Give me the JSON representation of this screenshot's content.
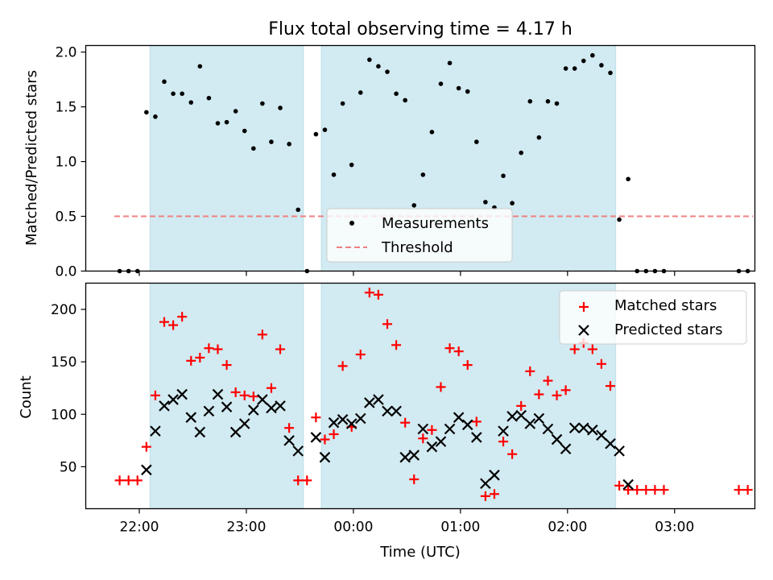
{
  "chart_data": [
    {
      "type": "scatter",
      "title": "Flux total observing time = 4.17 h",
      "xlabel": "",
      "ylabel": "Matched/Predicted stars",
      "ylim": [
        0,
        2.06
      ],
      "yticks": [
        "0.0",
        "0.5",
        "1.0",
        "1.5",
        "2.0"
      ],
      "grid": false,
      "legend_placement": "bottom-center",
      "shaded_x_ranges": [
        [
          "22:06",
          "23:32"
        ],
        [
          "23:42",
          "02:27"
        ]
      ],
      "series": [
        {
          "name": "Measurements",
          "kind": "points",
          "color": "#000000",
          "points": [
            [
              "21:49",
              0.0
            ],
            [
              "21:54",
              0.0
            ],
            [
              "21:59",
              0.0
            ],
            [
              "22:04",
              1.45
            ],
            [
              "22:09",
              1.41
            ],
            [
              "22:14",
              1.73
            ],
            [
              "22:19",
              1.62
            ],
            [
              "22:24",
              1.62
            ],
            [
              "22:29",
              1.54
            ],
            [
              "22:34",
              1.87
            ],
            [
              "22:39",
              1.58
            ],
            [
              "22:44",
              1.35
            ],
            [
              "22:49",
              1.36
            ],
            [
              "22:54",
              1.46
            ],
            [
              "22:59",
              1.28
            ],
            [
              "23:04",
              1.12
            ],
            [
              "23:09",
              1.53
            ],
            [
              "23:14",
              1.18
            ],
            [
              "23:19",
              1.49
            ],
            [
              "23:24",
              1.16
            ],
            [
              "23:29",
              0.56
            ],
            [
              "23:34",
              0.0
            ],
            [
              "23:39",
              1.25
            ],
            [
              "23:44",
              1.29
            ],
            [
              "23:49",
              0.88
            ],
            [
              "23:54",
              1.53
            ],
            [
              "23:59",
              0.97
            ],
            [
              "00:04",
              1.63
            ],
            [
              "00:09",
              1.93
            ],
            [
              "00:14",
              1.87
            ],
            [
              "00:19",
              1.82
            ],
            [
              "00:24",
              1.62
            ],
            [
              "00:29",
              1.56
            ],
            [
              "00:34",
              0.6
            ],
            [
              "00:39",
              0.88
            ],
            [
              "00:44",
              1.27
            ],
            [
              "00:49",
              1.71
            ],
            [
              "00:54",
              1.9
            ],
            [
              "00:59",
              1.67
            ],
            [
              "01:04",
              1.64
            ],
            [
              "01:09",
              1.18
            ],
            [
              "01:14",
              0.63
            ],
            [
              "01:19",
              0.58
            ],
            [
              "01:24",
              0.87
            ],
            [
              "01:29",
              0.62
            ],
            [
              "01:34",
              1.08
            ],
            [
              "01:39",
              1.55
            ],
            [
              "01:44",
              1.22
            ],
            [
              "01:49",
              1.55
            ],
            [
              "01:54",
              1.53
            ],
            [
              "01:59",
              1.85
            ],
            [
              "02:04",
              1.85
            ],
            [
              "02:09",
              1.92
            ],
            [
              "02:14",
              1.97
            ],
            [
              "02:19",
              1.88
            ],
            [
              "02:24",
              1.81
            ],
            [
              "02:29",
              0.47
            ],
            [
              "02:34",
              0.84
            ],
            [
              "02:39",
              0.0
            ],
            [
              "02:44",
              0.0
            ],
            [
              "02:49",
              0.0
            ],
            [
              "02:54",
              0.0
            ],
            [
              "03:36",
              0.0
            ],
            [
              "03:41",
              0.0
            ]
          ]
        },
        {
          "name": "Threshold",
          "kind": "dashed-line",
          "color": "#f08080",
          "points": [
            [
              "21:46",
              0.5
            ],
            [
              "03:44",
              0.5
            ]
          ]
        }
      ]
    },
    {
      "type": "scatter",
      "title": "",
      "xlabel": "Time (UTC)",
      "ylabel": "Count",
      "ylim": [
        10,
        225
      ],
      "yticks": [
        "50",
        "100",
        "150",
        "200"
      ],
      "xticks": [
        "22:00",
        "23:00",
        "00:00",
        "01:00",
        "02:00",
        "03:00"
      ],
      "grid": false,
      "legend_placement": "top-right",
      "shaded_x_ranges": [
        [
          "22:06",
          "23:32"
        ],
        [
          "23:42",
          "02:27"
        ]
      ],
      "series": [
        {
          "name": "Matched stars",
          "kind": "plus",
          "color": "#ff0000",
          "points": [
            [
              "21:49",
              37
            ],
            [
              "21:54",
              37
            ],
            [
              "21:59",
              37
            ],
            [
              "22:04",
              69
            ],
            [
              "22:09",
              118
            ],
            [
              "22:14",
              188
            ],
            [
              "22:19",
              185
            ],
            [
              "22:24",
              193
            ],
            [
              "22:29",
              151
            ],
            [
              "22:34",
              154
            ],
            [
              "22:39",
              163
            ],
            [
              "22:44",
              162
            ],
            [
              "22:49",
              147
            ],
            [
              "22:54",
              121
            ],
            [
              "22:59",
              118
            ],
            [
              "23:04",
              117
            ],
            [
              "23:09",
              176
            ],
            [
              "23:14",
              125
            ],
            [
              "23:19",
              162
            ],
            [
              "23:24",
              87
            ],
            [
              "23:29",
              37
            ],
            [
              "23:34",
              37
            ],
            [
              "23:39",
              97
            ],
            [
              "23:44",
              76
            ],
            [
              "23:49",
              81
            ],
            [
              "23:54",
              146
            ],
            [
              "23:59",
              88
            ],
            [
              "00:04",
              157
            ],
            [
              "00:09",
              216
            ],
            [
              "00:14",
              214
            ],
            [
              "00:19",
              186
            ],
            [
              "00:24",
              166
            ],
            [
              "00:29",
              92
            ],
            [
              "00:34",
              38
            ],
            [
              "00:39",
              77
            ],
            [
              "00:44",
              85
            ],
            [
              "00:49",
              126
            ],
            [
              "00:54",
              163
            ],
            [
              "00:59",
              160
            ],
            [
              "01:04",
              147
            ],
            [
              "01:09",
              93
            ],
            [
              "01:14",
              22
            ],
            [
              "01:19",
              24
            ],
            [
              "01:24",
              74
            ],
            [
              "01:29",
              62
            ],
            [
              "01:34",
              108
            ],
            [
              "01:39",
              141
            ],
            [
              "01:44",
              119
            ],
            [
              "01:49",
              132
            ],
            [
              "01:54",
              118
            ],
            [
              "01:59",
              123
            ],
            [
              "02:04",
              162
            ],
            [
              "02:09",
              168
            ],
            [
              "02:14",
              162
            ],
            [
              "02:19",
              148
            ],
            [
              "02:24",
              127
            ],
            [
              "02:29",
              32
            ],
            [
              "02:34",
              28
            ],
            [
              "02:39",
              28
            ],
            [
              "02:44",
              28
            ],
            [
              "02:49",
              28
            ],
            [
              "02:54",
              28
            ],
            [
              "03:36",
              28
            ],
            [
              "03:41",
              28
            ]
          ]
        },
        {
          "name": "Predicted stars",
          "kind": "cross",
          "color": "#000000",
          "points": [
            [
              "22:04",
              47
            ],
            [
              "22:09",
              84
            ],
            [
              "22:14",
              108
            ],
            [
              "22:19",
              114
            ],
            [
              "22:24",
              119
            ],
            [
              "22:29",
              97
            ],
            [
              "22:34",
              83
            ],
            [
              "22:39",
              103
            ],
            [
              "22:44",
              119
            ],
            [
              "22:49",
              107
            ],
            [
              "22:54",
              83
            ],
            [
              "22:59",
              91
            ],
            [
              "23:04",
              104
            ],
            [
              "23:09",
              114
            ],
            [
              "23:14",
              106
            ],
            [
              "23:19",
              108
            ],
            [
              "23:24",
              75
            ],
            [
              "23:29",
              65
            ],
            [
              "23:39",
              78
            ],
            [
              "23:44",
              59
            ],
            [
              "23:49",
              92
            ],
            [
              "23:54",
              95
            ],
            [
              "23:59",
              91
            ],
            [
              "00:04",
              96
            ],
            [
              "00:09",
              111
            ],
            [
              "00:14",
              114
            ],
            [
              "00:19",
              103
            ],
            [
              "00:24",
              103
            ],
            [
              "00:29",
              59
            ],
            [
              "00:34",
              61
            ],
            [
              "00:39",
              86
            ],
            [
              "00:44",
              69
            ],
            [
              "00:49",
              74
            ],
            [
              "00:54",
              86
            ],
            [
              "00:59",
              97
            ],
            [
              "01:04",
              90
            ],
            [
              "01:09",
              78
            ],
            [
              "01:14",
              34
            ],
            [
              "01:19",
              42
            ],
            [
              "01:24",
              84
            ],
            [
              "01:29",
              98
            ],
            [
              "01:34",
              99
            ],
            [
              "01:39",
              91
            ],
            [
              "01:44",
              96
            ],
            [
              "01:49",
              86
            ],
            [
              "01:54",
              76
            ],
            [
              "01:59",
              67
            ],
            [
              "02:04",
              87
            ],
            [
              "02:09",
              87
            ],
            [
              "02:14",
              85
            ],
            [
              "02:19",
              80
            ],
            [
              "02:24",
              72
            ],
            [
              "02:29",
              65
            ],
            [
              "02:34",
              33
            ]
          ]
        }
      ]
    }
  ],
  "colors": {
    "shade": "#add8e6",
    "threshold": "#f08080",
    "matched": "#ff0000",
    "predicted": "#000000"
  }
}
